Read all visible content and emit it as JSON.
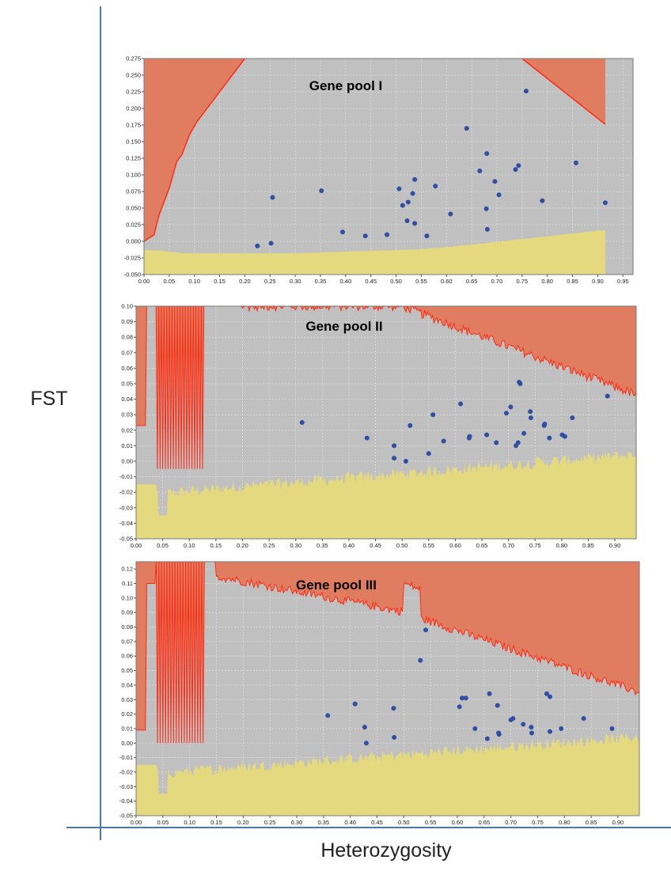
{
  "figure": {
    "ylabel": "FST",
    "xlabel": "Heterozygosity",
    "frame_color": "#4a78b5"
  },
  "colors": {
    "plot_bg": "#c0c0c0",
    "upper_region": "#e07d61",
    "upper_line": "#ff2a12",
    "lower_region": "#e4d97e",
    "points": "#2f4fa3",
    "grid": "#dedede",
    "title_text": "#000000"
  },
  "chart_data": [
    {
      "type": "scatter",
      "title": "Gene pool I",
      "xlim": [
        0,
        0.97
      ],
      "ylim": [
        -0.05,
        0.275
      ],
      "x_ticks": [
        "0.00",
        "0.05",
        "0.10",
        "0.15",
        "0.20",
        "0.25",
        "0.30",
        "0.35",
        "0.40",
        "0.45",
        "0.50",
        "0.55",
        "0.60",
        "0.65",
        "0.70",
        "0.75",
        "0.80",
        "0.85",
        "0.90",
        "0.95"
      ],
      "y_ticks": [
        "-0.050",
        "-0.025",
        "0.000",
        "0.025",
        "0.050",
        "0.075",
        "0.100",
        "0.125",
        "0.150",
        "0.175",
        "0.200",
        "0.225",
        "0.250",
        "0.275"
      ],
      "grid": true,
      "points": [
        {
          "x": 0.225,
          "y": -0.007
        },
        {
          "x": 0.255,
          "y": 0.066
        },
        {
          "x": 0.252,
          "y": -0.003
        },
        {
          "x": 0.352,
          "y": 0.076
        },
        {
          "x": 0.394,
          "y": 0.014
        },
        {
          "x": 0.439,
          "y": 0.008
        },
        {
          "x": 0.482,
          "y": 0.01
        },
        {
          "x": 0.506,
          "y": 0.079
        },
        {
          "x": 0.513,
          "y": 0.054
        },
        {
          "x": 0.522,
          "y": 0.031
        },
        {
          "x": 0.524,
          "y": 0.059
        },
        {
          "x": 0.533,
          "y": 0.072
        },
        {
          "x": 0.537,
          "y": 0.093
        },
        {
          "x": 0.537,
          "y": 0.027
        },
        {
          "x": 0.561,
          "y": 0.008
        },
        {
          "x": 0.578,
          "y": 0.083
        },
        {
          "x": 0.608,
          "y": 0.041
        },
        {
          "x": 0.64,
          "y": 0.17
        },
        {
          "x": 0.666,
          "y": 0.106
        },
        {
          "x": 0.68,
          "y": 0.132
        },
        {
          "x": 0.679,
          "y": 0.049
        },
        {
          "x": 0.681,
          "y": 0.018
        },
        {
          "x": 0.696,
          "y": 0.09
        },
        {
          "x": 0.704,
          "y": 0.07
        },
        {
          "x": 0.737,
          "y": 0.108
        },
        {
          "x": 0.743,
          "y": 0.114
        },
        {
          "x": 0.758,
          "y": 0.226
        },
        {
          "x": 0.79,
          "y": 0.061
        },
        {
          "x": 0.857,
          "y": 0.118
        },
        {
          "x": 0.915,
          "y": 0.058
        }
      ]
    },
    {
      "type": "scatter",
      "title": "Gene pool II",
      "xlim": [
        0,
        0.94
      ],
      "ylim": [
        -0.05,
        0.1
      ],
      "x_ticks": [
        "0.00",
        "0.05",
        "0.10",
        "0.15",
        "0.20",
        "0.25",
        "0.30",
        "0.35",
        "0.40",
        "0.45",
        "0.50",
        "0.55",
        "0.60",
        "0.65",
        "0.70",
        "0.75",
        "0.80",
        "0.85",
        "0.90"
      ],
      "y_ticks": [
        "-0.05",
        "-0.04",
        "-0.03",
        "-0.02",
        "-0.01",
        "0.00",
        "0.01",
        "0.02",
        "0.03",
        "0.04",
        "0.05",
        "0.06",
        "0.07",
        "0.08",
        "0.09",
        "0.10"
      ],
      "grid": true,
      "points": [
        {
          "x": 0.312,
          "y": 0.025
        },
        {
          "x": 0.434,
          "y": 0.015
        },
        {
          "x": 0.485,
          "y": 0.01
        },
        {
          "x": 0.485,
          "y": 0.002
        },
        {
          "x": 0.507,
          "y": 0.0
        },
        {
          "x": 0.515,
          "y": 0.023
        },
        {
          "x": 0.55,
          "y": 0.005
        },
        {
          "x": 0.558,
          "y": 0.03
        },
        {
          "x": 0.578,
          "y": 0.013
        },
        {
          "x": 0.61,
          "y": 0.037
        },
        {
          "x": 0.626,
          "y": 0.015
        },
        {
          "x": 0.627,
          "y": 0.016
        },
        {
          "x": 0.659,
          "y": 0.017
        },
        {
          "x": 0.677,
          "y": 0.012
        },
        {
          "x": 0.696,
          "y": 0.031
        },
        {
          "x": 0.704,
          "y": 0.035
        },
        {
          "x": 0.714,
          "y": 0.01
        },
        {
          "x": 0.718,
          "y": 0.012
        },
        {
          "x": 0.72,
          "y": 0.051
        },
        {
          "x": 0.722,
          "y": 0.05
        },
        {
          "x": 0.729,
          "y": 0.018
        },
        {
          "x": 0.741,
          "y": 0.032
        },
        {
          "x": 0.742,
          "y": 0.028
        },
        {
          "x": 0.767,
          "y": 0.023
        },
        {
          "x": 0.768,
          "y": 0.024
        },
        {
          "x": 0.777,
          "y": 0.015
        },
        {
          "x": 0.801,
          "y": 0.017
        },
        {
          "x": 0.806,
          "y": 0.016
        },
        {
          "x": 0.82,
          "y": 0.028
        },
        {
          "x": 0.886,
          "y": 0.042
        }
      ]
    },
    {
      "type": "scatter",
      "title": "Gene pool III",
      "xlim": [
        0,
        0.94
      ],
      "ylim": [
        -0.05,
        0.125
      ],
      "x_ticks": [
        "0.00",
        "0.05",
        "0.10",
        "0.15",
        "0.20",
        "0.25",
        "0.30",
        "0.35",
        "0.40",
        "0.45",
        "0.50",
        "0.55",
        "0.60",
        "0.65",
        "0.70",
        "0.75",
        "0.80",
        "0.85",
        "0.90"
      ],
      "y_ticks": [
        "-0.05",
        "-0.04",
        "-0.03",
        "-0.02",
        "-0.01",
        "0.00",
        "0.01",
        "0.02",
        "0.03",
        "0.04",
        "0.05",
        "0.06",
        "0.07",
        "0.08",
        "0.09",
        "0.10",
        "0.11",
        "0.12"
      ],
      "grid": true,
      "points": [
        {
          "x": 0.358,
          "y": 0.019
        },
        {
          "x": 0.409,
          "y": 0.027
        },
        {
          "x": 0.427,
          "y": 0.011
        },
        {
          "x": 0.43,
          "y": 0.0
        },
        {
          "x": 0.481,
          "y": 0.024
        },
        {
          "x": 0.482,
          "y": 0.004
        },
        {
          "x": 0.531,
          "y": 0.057
        },
        {
          "x": 0.541,
          "y": 0.078
        },
        {
          "x": 0.604,
          "y": 0.025
        },
        {
          "x": 0.609,
          "y": 0.031
        },
        {
          "x": 0.616,
          "y": 0.031
        },
        {
          "x": 0.633,
          "y": 0.01
        },
        {
          "x": 0.656,
          "y": 0.003
        },
        {
          "x": 0.66,
          "y": 0.034
        },
        {
          "x": 0.675,
          "y": 0.026
        },
        {
          "x": 0.677,
          "y": 0.007
        },
        {
          "x": 0.678,
          "y": 0.006
        },
        {
          "x": 0.7,
          "y": 0.016
        },
        {
          "x": 0.704,
          "y": 0.017
        },
        {
          "x": 0.723,
          "y": 0.013
        },
        {
          "x": 0.738,
          "y": 0.011
        },
        {
          "x": 0.739,
          "y": 0.007
        },
        {
          "x": 0.767,
          "y": 0.034
        },
        {
          "x": 0.773,
          "y": 0.032
        },
        {
          "x": 0.773,
          "y": 0.008
        },
        {
          "x": 0.794,
          "y": 0.01
        },
        {
          "x": 0.836,
          "y": 0.017
        },
        {
          "x": 0.889,
          "y": 0.01
        }
      ]
    }
  ]
}
